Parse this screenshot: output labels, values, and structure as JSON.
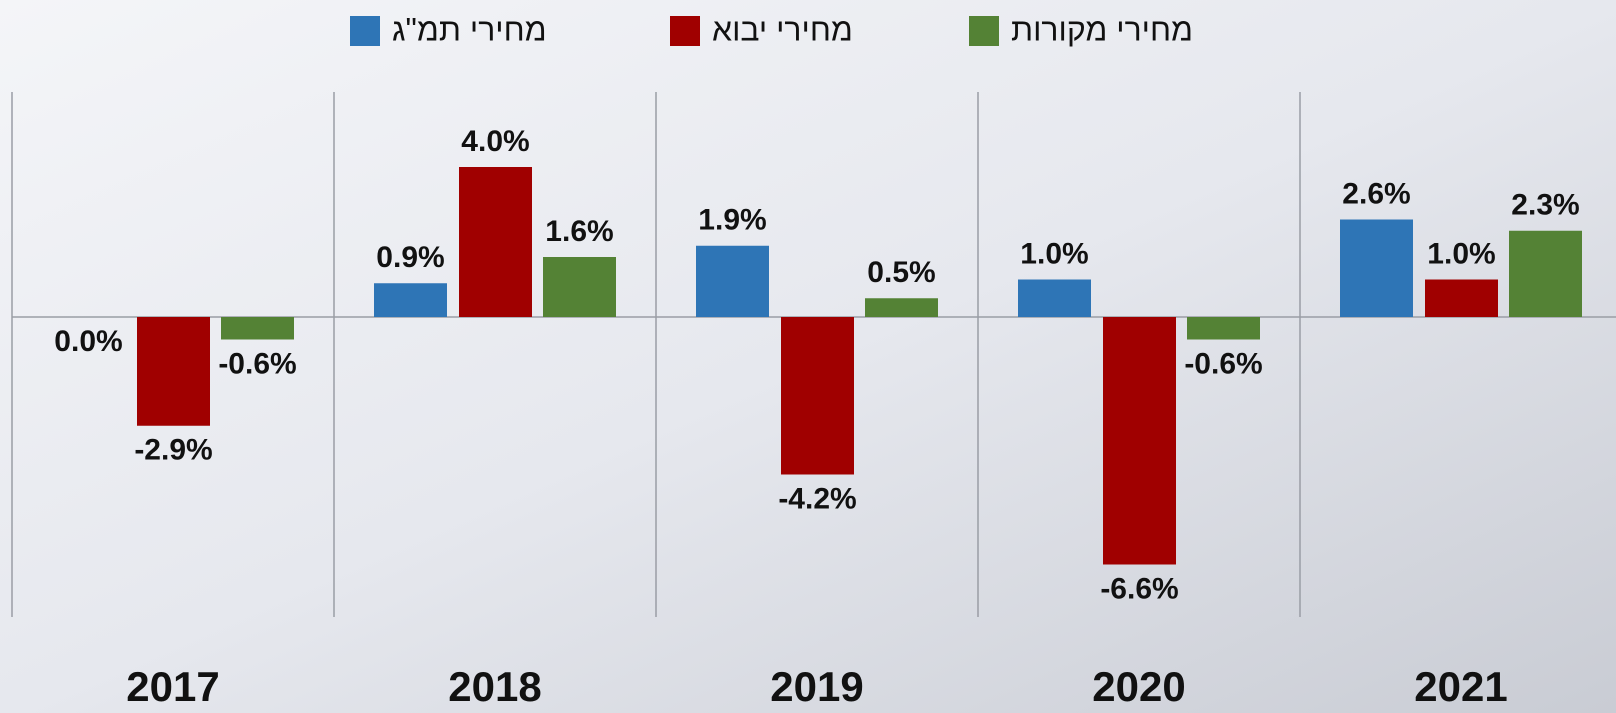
{
  "chart_data": {
    "type": "bar",
    "categories": [
      "2017",
      "2018",
      "2019",
      "2020",
      "2021"
    ],
    "series": [
      {
        "name": "מחירי תמ\"ג",
        "color": "#2e75b6",
        "values": [
          0.0,
          0.9,
          1.9,
          1.0,
          2.6
        ],
        "value_labels": [
          "0.0%",
          "0.9%",
          "1.9%",
          "1.0%",
          "2.6%"
        ]
      },
      {
        "name": "מחירי יבוא",
        "color": "#a00000",
        "values": [
          -2.9,
          4.0,
          -4.2,
          -6.6,
          1.0
        ],
        "value_labels": [
          "-2.9%",
          "4.0%",
          "-4.2%",
          "-6.6%",
          "1.0%"
        ]
      },
      {
        "name": "מחירי מקורות",
        "color": "#548235",
        "values": [
          -0.6,
          1.6,
          0.5,
          -0.6,
          2.3
        ],
        "value_labels": [
          "-0.6%",
          "1.6%",
          "0.5%",
          "-0.6%",
          "2.3%"
        ]
      }
    ],
    "ylim": [
      -8,
      6
    ]
  }
}
